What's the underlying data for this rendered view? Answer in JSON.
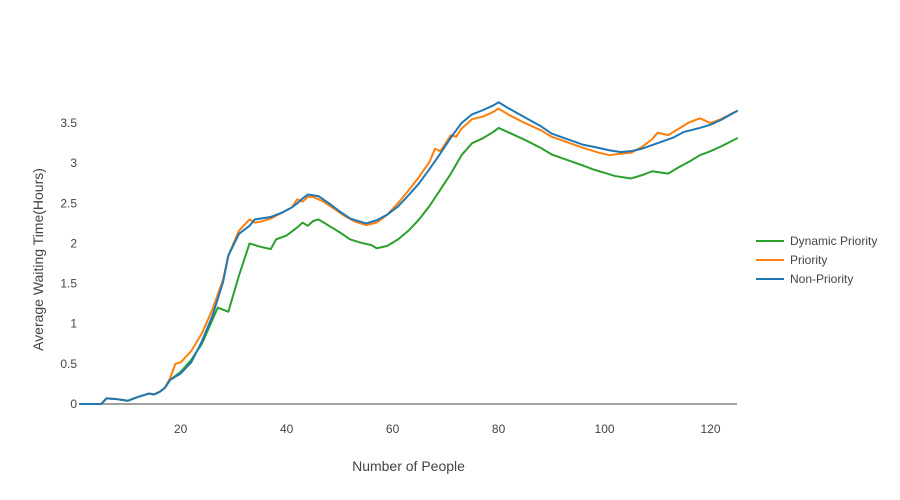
{
  "chart_data": {
    "type": "line",
    "title": "",
    "xlabel": "Number of People",
    "ylabel": "Average Waiting Time(Hours)",
    "xlim": [
      1,
      125
    ],
    "ylim": [
      0,
      3.85
    ],
    "x_ticks": [
      20,
      40,
      60,
      80,
      100,
      120
    ],
    "y_ticks": [
      0,
      0.5,
      1,
      1.5,
      2,
      2.5,
      3,
      3.5
    ],
    "y_tick_labels": [
      "0",
      "0.5",
      "1",
      "1.5",
      "2",
      "2.5",
      "3",
      "3.5"
    ],
    "grid": false,
    "legend_position": "right",
    "series": [
      {
        "name": "Dynamic Priority",
        "color": "#2ca02c",
        "points": [
          [
            1,
            0
          ],
          [
            5,
            0
          ],
          [
            6,
            0.07
          ],
          [
            8,
            0.06
          ],
          [
            10,
            0.04
          ],
          [
            12,
            0.09
          ],
          [
            14,
            0.13
          ],
          [
            15,
            0.12
          ],
          [
            16,
            0.15
          ],
          [
            17,
            0.2
          ],
          [
            18,
            0.3
          ],
          [
            20,
            0.4
          ],
          [
            22,
            0.55
          ],
          [
            24,
            0.75
          ],
          [
            26,
            1.05
          ],
          [
            27,
            1.2
          ],
          [
            29,
            1.15
          ],
          [
            31,
            1.6
          ],
          [
            33,
            2.0
          ],
          [
            35,
            1.96
          ],
          [
            37,
            1.93
          ],
          [
            38,
            2.05
          ],
          [
            40,
            2.1
          ],
          [
            42,
            2.2
          ],
          [
            43,
            2.26
          ],
          [
            44,
            2.22
          ],
          [
            45,
            2.28
          ],
          [
            46,
            2.3
          ],
          [
            48,
            2.22
          ],
          [
            50,
            2.14
          ],
          [
            52,
            2.05
          ],
          [
            54,
            2.01
          ],
          [
            56,
            1.98
          ],
          [
            57,
            1.94
          ],
          [
            59,
            1.97
          ],
          [
            61,
            2.05
          ],
          [
            63,
            2.16
          ],
          [
            65,
            2.3
          ],
          [
            67,
            2.47
          ],
          [
            69,
            2.67
          ],
          [
            71,
            2.87
          ],
          [
            73,
            3.1
          ],
          [
            75,
            3.25
          ],
          [
            77,
            3.31
          ],
          [
            79,
            3.39
          ],
          [
            80,
            3.44
          ],
          [
            82,
            3.38
          ],
          [
            85,
            3.29
          ],
          [
            88,
            3.19
          ],
          [
            90,
            3.11
          ],
          [
            93,
            3.04
          ],
          [
            96,
            2.97
          ],
          [
            98,
            2.92
          ],
          [
            100,
            2.88
          ],
          [
            102,
            2.84
          ],
          [
            105,
            2.81
          ],
          [
            107,
            2.85
          ],
          [
            109,
            2.9
          ],
          [
            112,
            2.87
          ],
          [
            114,
            2.95
          ],
          [
            116,
            3.02
          ],
          [
            118,
            3.1
          ],
          [
            120,
            3.15
          ],
          [
            122,
            3.21
          ],
          [
            125,
            3.31
          ]
        ]
      },
      {
        "name": "Priority",
        "color": "#ff7f0e",
        "points": [
          [
            1,
            0
          ],
          [
            5,
            0
          ],
          [
            6,
            0.07
          ],
          [
            8,
            0.06
          ],
          [
            10,
            0.04
          ],
          [
            12,
            0.09
          ],
          [
            14,
            0.13
          ],
          [
            15,
            0.12
          ],
          [
            16,
            0.15
          ],
          [
            17,
            0.2
          ],
          [
            18,
            0.32
          ],
          [
            19,
            0.5
          ],
          [
            20,
            0.52
          ],
          [
            22,
            0.66
          ],
          [
            24,
            0.88
          ],
          [
            26,
            1.18
          ],
          [
            28,
            1.55
          ],
          [
            29,
            1.85
          ],
          [
            31,
            2.16
          ],
          [
            33,
            2.3
          ],
          [
            34,
            2.26
          ],
          [
            35,
            2.27
          ],
          [
            37,
            2.31
          ],
          [
            39,
            2.38
          ],
          [
            41,
            2.45
          ],
          [
            42,
            2.55
          ],
          [
            43,
            2.52
          ],
          [
            44,
            2.58
          ],
          [
            45,
            2.58
          ],
          [
            47,
            2.52
          ],
          [
            49,
            2.43
          ],
          [
            51,
            2.34
          ],
          [
            53,
            2.27
          ],
          [
            55,
            2.23
          ],
          [
            57,
            2.26
          ],
          [
            59,
            2.36
          ],
          [
            61,
            2.5
          ],
          [
            63,
            2.66
          ],
          [
            65,
            2.83
          ],
          [
            67,
            3.02
          ],
          [
            68,
            3.18
          ],
          [
            69,
            3.15
          ],
          [
            71,
            3.35
          ],
          [
            72,
            3.33
          ],
          [
            73,
            3.43
          ],
          [
            75,
            3.55
          ],
          [
            77,
            3.58
          ],
          [
            79,
            3.64
          ],
          [
            80,
            3.68
          ],
          [
            82,
            3.6
          ],
          [
            85,
            3.5
          ],
          [
            88,
            3.41
          ],
          [
            90,
            3.33
          ],
          [
            93,
            3.26
          ],
          [
            96,
            3.19
          ],
          [
            99,
            3.13
          ],
          [
            101,
            3.1
          ],
          [
            103,
            3.12
          ],
          [
            105,
            3.13
          ],
          [
            107,
            3.2
          ],
          [
            109,
            3.3
          ],
          [
            110,
            3.38
          ],
          [
            112,
            3.35
          ],
          [
            114,
            3.43
          ],
          [
            116,
            3.51
          ],
          [
            118,
            3.56
          ],
          [
            120,
            3.5
          ],
          [
            122,
            3.55
          ],
          [
            125,
            3.65
          ]
        ]
      },
      {
        "name": "Non-Priority",
        "color": "#1f77b4",
        "points": [
          [
            1,
            0
          ],
          [
            5,
            0
          ],
          [
            6,
            0.07
          ],
          [
            8,
            0.06
          ],
          [
            10,
            0.04
          ],
          [
            12,
            0.09
          ],
          [
            14,
            0.13
          ],
          [
            15,
            0.12
          ],
          [
            16,
            0.15
          ],
          [
            17,
            0.2
          ],
          [
            18,
            0.3
          ],
          [
            20,
            0.38
          ],
          [
            22,
            0.52
          ],
          [
            24,
            0.78
          ],
          [
            26,
            1.1
          ],
          [
            28,
            1.52
          ],
          [
            29,
            1.85
          ],
          [
            31,
            2.12
          ],
          [
            33,
            2.22
          ],
          [
            34,
            2.3
          ],
          [
            35,
            2.31
          ],
          [
            37,
            2.33
          ],
          [
            39,
            2.38
          ],
          [
            41,
            2.45
          ],
          [
            42,
            2.5
          ],
          [
            43,
            2.56
          ],
          [
            44,
            2.61
          ],
          [
            46,
            2.59
          ],
          [
            48,
            2.5
          ],
          [
            50,
            2.4
          ],
          [
            52,
            2.31
          ],
          [
            55,
            2.25
          ],
          [
            57,
            2.29
          ],
          [
            59,
            2.36
          ],
          [
            61,
            2.46
          ],
          [
            63,
            2.6
          ],
          [
            65,
            2.75
          ],
          [
            67,
            2.93
          ],
          [
            69,
            3.12
          ],
          [
            71,
            3.32
          ],
          [
            73,
            3.5
          ],
          [
            75,
            3.61
          ],
          [
            77,
            3.66
          ],
          [
            79,
            3.72
          ],
          [
            80,
            3.76
          ],
          [
            82,
            3.68
          ],
          [
            85,
            3.57
          ],
          [
            88,
            3.46
          ],
          [
            90,
            3.37
          ],
          [
            93,
            3.3
          ],
          [
            96,
            3.23
          ],
          [
            99,
            3.19
          ],
          [
            101,
            3.16
          ],
          [
            103,
            3.14
          ],
          [
            105,
            3.15
          ],
          [
            107,
            3.18
          ],
          [
            110,
            3.25
          ],
          [
            113,
            3.32
          ],
          [
            115,
            3.39
          ],
          [
            118,
            3.44
          ],
          [
            120,
            3.48
          ],
          [
            122,
            3.54
          ],
          [
            125,
            3.65
          ]
        ]
      }
    ],
    "legend_order": [
      "Dynamic Priority",
      "Priority",
      "Non-Priority"
    ]
  }
}
